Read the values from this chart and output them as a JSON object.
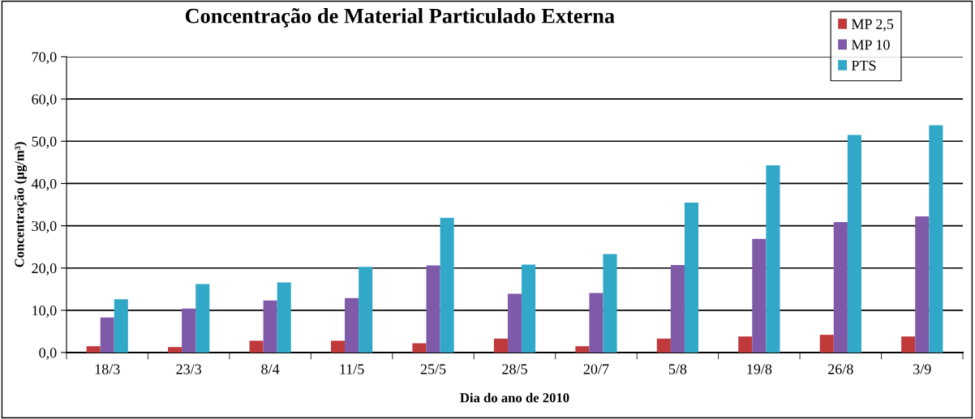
{
  "chart_data": {
    "type": "bar",
    "title": "Concentração de Material Particulado Externa",
    "xlabel": "Dia do ano de 2010",
    "ylabel": "Concentração (µg/m³)",
    "categories": [
      "18/3",
      "23/3",
      "8/4",
      "11/5",
      "25/5",
      "28/5",
      "20/7",
      "5/8",
      "19/8",
      "26/8",
      "3/9"
    ],
    "series": [
      {
        "name": "MP 2,5",
        "color": "#c0393b",
        "values": [
          1.5,
          1.3,
          2.8,
          2.8,
          2.2,
          3.3,
          1.5,
          3.3,
          3.8,
          4.2,
          3.8
        ]
      },
      {
        "name": "MP 10",
        "color": "#7f5aa8",
        "values": [
          8.3,
          10.4,
          12.3,
          12.9,
          20.6,
          13.9,
          14.1,
          20.7,
          26.9,
          30.9,
          32.2
        ]
      },
      {
        "name": "PTS",
        "color": "#31a8c8",
        "values": [
          12.6,
          16.2,
          16.6,
          20.3,
          31.9,
          20.8,
          23.3,
          35.5,
          44.3,
          51.5,
          53.8
        ]
      }
    ],
    "ylim": [
      0,
      70
    ],
    "yticks": [
      {
        "value": 0,
        "label": "0,0"
      },
      {
        "value": 10,
        "label": "10,0"
      },
      {
        "value": 20,
        "label": "20,0"
      },
      {
        "value": 30,
        "label": "30,0"
      },
      {
        "value": 40,
        "label": "40,0"
      },
      {
        "value": 50,
        "label": "50,0"
      },
      {
        "value": 60,
        "label": "60,0"
      },
      {
        "value": 70,
        "label": "70,0"
      }
    ],
    "grid": "y",
    "legend": "top right"
  }
}
